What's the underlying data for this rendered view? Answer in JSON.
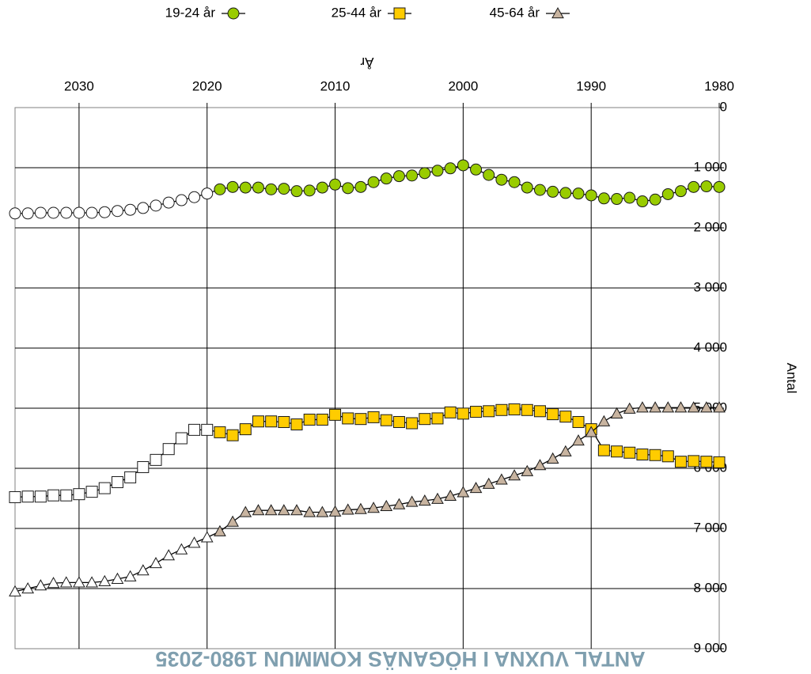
{
  "chart_data": {
    "type": "line",
    "title": "ANTAL VUXNA I HÖGANÄS KOMMUN 1980-2035",
    "xlabel": "År",
    "ylabel": "Antal",
    "xlim": [
      1980,
      2035
    ],
    "ylim": [
      0,
      9000
    ],
    "x_ticks": [
      1980,
      1990,
      2000,
      2010,
      2020,
      2030
    ],
    "x_tick_labels": [
      "1980",
      "1990",
      "2000",
      "2010",
      "2020",
      "2030"
    ],
    "y_ticks": [
      0,
      1000,
      2000,
      3000,
      4000,
      5000,
      6000,
      7000,
      8000,
      9000
    ],
    "y_tick_labels": [
      "0",
      "1 000",
      "2 000",
      "3 000",
      "4 000",
      "5 000",
      "6 000",
      "7 000",
      "8 000",
      "9 000"
    ],
    "grid": true,
    "legend_position": "bottom",
    "forecast_from": 2019,
    "x": [
      1980,
      1981,
      1982,
      1983,
      1984,
      1985,
      1986,
      1987,
      1988,
      1989,
      1990,
      1991,
      1992,
      1993,
      1994,
      1995,
      1996,
      1997,
      1998,
      1999,
      2000,
      2001,
      2002,
      2003,
      2004,
      2005,
      2006,
      2007,
      2008,
      2009,
      2010,
      2011,
      2012,
      2013,
      2014,
      2015,
      2016,
      2017,
      2018,
      2019,
      2020,
      2021,
      2022,
      2023,
      2024,
      2025,
      2026,
      2027,
      2028,
      2029,
      2030,
      2031,
      2032,
      2033,
      2034,
      2035
    ],
    "series": [
      {
        "name": "19-24 år",
        "color": "#99cc00",
        "marker": "circle",
        "values": [
          1320,
          1310,
          1320,
          1390,
          1440,
          1530,
          1560,
          1500,
          1520,
          1510,
          1460,
          1430,
          1420,
          1400,
          1370,
          1330,
          1240,
          1200,
          1120,
          1030,
          960,
          1010,
          1050,
          1090,
          1130,
          1140,
          1180,
          1240,
          1320,
          1340,
          1280,
          1330,
          1380,
          1390,
          1350,
          1360,
          1330,
          1330,
          1320,
          1360,
          1430,
          1490,
          1540,
          1580,
          1630,
          1670,
          1700,
          1720,
          1740,
          1750,
          1750,
          1750,
          1750,
          1750,
          1760,
          1760
        ]
      },
      {
        "name": "25-44 år",
        "color": "#ffcc00",
        "marker": "square",
        "values": [
          5900,
          5890,
          5880,
          5890,
          5800,
          5780,
          5770,
          5740,
          5720,
          5700,
          5350,
          5230,
          5140,
          5100,
          5050,
          5030,
          5020,
          5030,
          5050,
          5060,
          5090,
          5070,
          5170,
          5180,
          5250,
          5230,
          5200,
          5150,
          5180,
          5170,
          5110,
          5190,
          5190,
          5270,
          5230,
          5220,
          5220,
          5350,
          5450,
          5400,
          5360,
          5360,
          5500,
          5680,
          5860,
          5980,
          6150,
          6230,
          6330,
          6390,
          6430,
          6450,
          6450,
          6470,
          6470,
          6480
        ]
      },
      {
        "name": "45-64 år",
        "color": "#c8b4a0",
        "marker": "triangle",
        "values": [
          4990,
          4990,
          4990,
          4990,
          4990,
          4990,
          4990,
          5010,
          5090,
          5220,
          5400,
          5540,
          5720,
          5840,
          5950,
          6050,
          6120,
          6190,
          6260,
          6330,
          6400,
          6460,
          6510,
          6540,
          6560,
          6600,
          6630,
          6660,
          6680,
          6690,
          6720,
          6730,
          6730,
          6700,
          6700,
          6700,
          6700,
          6730,
          6890,
          7050,
          7150,
          7240,
          7350,
          7450,
          7580,
          7700,
          7800,
          7840,
          7880,
          7900,
          7900,
          7900,
          7910,
          7950,
          8000,
          8050
        ]
      }
    ]
  }
}
